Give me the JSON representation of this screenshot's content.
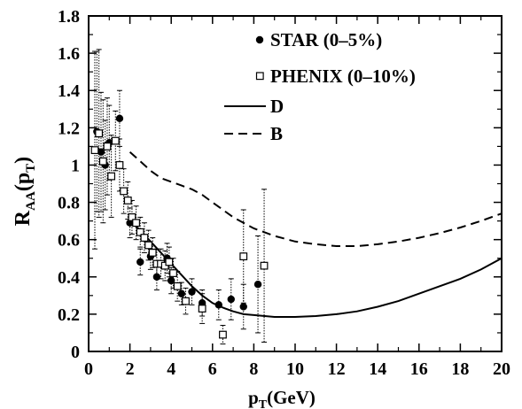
{
  "chart_data": {
    "type": "scatter",
    "title": "",
    "xlabel": "p_T(GeV)",
    "ylabel": "R_AA(p_T)",
    "xlabel_main": "p",
    "xlabel_sub": "T",
    "xlabel_rest": "(GeV)",
    "ylabel_main": "R",
    "ylabel_sub": "AA",
    "ylabel_paren_open": "(p",
    "ylabel_sub2": "T",
    "ylabel_paren_close": ")",
    "xlim": [
      0,
      20
    ],
    "ylim": [
      0,
      1.8
    ],
    "xticks": [
      "0",
      "2",
      "4",
      "6",
      "8",
      "10",
      "12",
      "14",
      "16",
      "18",
      "20"
    ],
    "yticks": [
      "0",
      "0.2",
      "0.4",
      "0.6",
      "0.8",
      "1",
      "1.2",
      "1.4",
      "1.6",
      "1.8"
    ],
    "grid": false,
    "legend_position": "top-right",
    "series": [
      {
        "name": "STAR (0–5%)",
        "kind": "points",
        "marker": "filled-circle",
        "points": [
          {
            "x": 0.4,
            "y": 1.18,
            "err": 0.43
          },
          {
            "x": 0.6,
            "y": 1.07,
            "err": 0.32
          },
          {
            "x": 0.8,
            "y": 1.0,
            "err": 0.24
          },
          {
            "x": 1.0,
            "y": 1.12,
            "err": 0.2
          },
          {
            "x": 1.5,
            "y": 1.25,
            "err": 0.15
          },
          {
            "x": 2.0,
            "y": 0.69,
            "err": 0.08
          },
          {
            "x": 2.5,
            "y": 0.48,
            "err": 0.07
          },
          {
            "x": 3.0,
            "y": 0.51,
            "err": 0.07
          },
          {
            "x": 3.3,
            "y": 0.4,
            "err": 0.07
          },
          {
            "x": 3.8,
            "y": 0.5,
            "err": 0.08
          },
          {
            "x": 4.0,
            "y": 0.38,
            "err": 0.07
          },
          {
            "x": 4.5,
            "y": 0.31,
            "err": 0.06
          },
          {
            "x": 5.0,
            "y": 0.32,
            "err": 0.07
          },
          {
            "x": 5.5,
            "y": 0.26,
            "err": 0.07
          },
          {
            "x": 6.3,
            "y": 0.25,
            "err": 0.08
          },
          {
            "x": 6.9,
            "y": 0.28,
            "err": 0.11
          },
          {
            "x": 7.5,
            "y": 0.24,
            "err": 0.12
          },
          {
            "x": 8.2,
            "y": 0.36,
            "err": 0.26
          }
        ]
      },
      {
        "name": "PHENIX (0–10%)",
        "kind": "points",
        "marker": "open-square",
        "points": [
          {
            "x": 0.3,
            "y": 1.08,
            "err": 0.53
          },
          {
            "x": 0.5,
            "y": 1.17,
            "err": 0.45
          },
          {
            "x": 0.7,
            "y": 1.02,
            "err": 0.33
          },
          {
            "x": 0.9,
            "y": 1.1,
            "err": 0.26
          },
          {
            "x": 1.1,
            "y": 0.94,
            "err": 0.22
          },
          {
            "x": 1.3,
            "y": 1.13,
            "err": 0.16
          },
          {
            "x": 1.5,
            "y": 1.0,
            "err": 0.14
          },
          {
            "x": 1.7,
            "y": 0.86,
            "err": 0.12
          },
          {
            "x": 1.9,
            "y": 0.81,
            "err": 0.1
          },
          {
            "x": 2.1,
            "y": 0.72,
            "err": 0.09
          },
          {
            "x": 2.3,
            "y": 0.69,
            "err": 0.09
          },
          {
            "x": 2.5,
            "y": 0.64,
            "err": 0.08
          },
          {
            "x": 2.7,
            "y": 0.61,
            "err": 0.08
          },
          {
            "x": 2.9,
            "y": 0.57,
            "err": 0.08
          },
          {
            "x": 3.1,
            "y": 0.53,
            "err": 0.08
          },
          {
            "x": 3.3,
            "y": 0.47,
            "err": 0.08
          },
          {
            "x": 3.5,
            "y": 0.47,
            "err": 0.08
          },
          {
            "x": 3.7,
            "y": 0.46,
            "err": 0.08
          },
          {
            "x": 3.9,
            "y": 0.48,
            "err": 0.08
          },
          {
            "x": 4.1,
            "y": 0.42,
            "err": 0.08
          },
          {
            "x": 4.3,
            "y": 0.35,
            "err": 0.08
          },
          {
            "x": 4.7,
            "y": 0.27,
            "err": 0.07
          },
          {
            "x": 5.5,
            "y": 0.23,
            "err": 0.08
          },
          {
            "x": 6.5,
            "y": 0.09,
            "err": 0.05
          },
          {
            "x": 7.5,
            "y": 0.51,
            "err": 0.25
          },
          {
            "x": 8.5,
            "y": 0.46,
            "err": 0.41
          }
        ]
      },
      {
        "name": "D",
        "kind": "line",
        "dash": "solid",
        "points": [
          {
            "x": 2.0,
            "y": 0.7
          },
          {
            "x": 2.5,
            "y": 0.65
          },
          {
            "x": 3.0,
            "y": 0.59
          },
          {
            "x": 3.5,
            "y": 0.53
          },
          {
            "x": 4.0,
            "y": 0.47
          },
          {
            "x": 4.5,
            "y": 0.41
          },
          {
            "x": 5.0,
            "y": 0.35
          },
          {
            "x": 5.5,
            "y": 0.3
          },
          {
            "x": 6.0,
            "y": 0.26
          },
          {
            "x": 6.5,
            "y": 0.235
          },
          {
            "x": 7.0,
            "y": 0.215
          },
          {
            "x": 7.5,
            "y": 0.2
          },
          {
            "x": 8.0,
            "y": 0.195
          },
          {
            "x": 9.0,
            "y": 0.185
          },
          {
            "x": 10.0,
            "y": 0.185
          },
          {
            "x": 11.0,
            "y": 0.19
          },
          {
            "x": 12.0,
            "y": 0.2
          },
          {
            "x": 13.0,
            "y": 0.215
          },
          {
            "x": 14.0,
            "y": 0.24
          },
          {
            "x": 15.0,
            "y": 0.27
          },
          {
            "x": 16.0,
            "y": 0.31
          },
          {
            "x": 17.0,
            "y": 0.35
          },
          {
            "x": 18.0,
            "y": 0.39
          },
          {
            "x": 19.0,
            "y": 0.44
          },
          {
            "x": 20.0,
            "y": 0.5
          }
        ]
      },
      {
        "name": "B",
        "kind": "line",
        "dash": "dashed",
        "points": [
          {
            "x": 2.0,
            "y": 1.07
          },
          {
            "x": 2.5,
            "y": 1.02
          },
          {
            "x": 3.0,
            "y": 0.97
          },
          {
            "x": 3.5,
            "y": 0.93
          },
          {
            "x": 4.0,
            "y": 0.91
          },
          {
            "x": 4.5,
            "y": 0.89
          },
          {
            "x": 5.0,
            "y": 0.87
          },
          {
            "x": 5.5,
            "y": 0.84
          },
          {
            "x": 6.0,
            "y": 0.8
          },
          {
            "x": 6.5,
            "y": 0.76
          },
          {
            "x": 7.0,
            "y": 0.72
          },
          {
            "x": 7.5,
            "y": 0.69
          },
          {
            "x": 8.0,
            "y": 0.66
          },
          {
            "x": 9.0,
            "y": 0.62
          },
          {
            "x": 10.0,
            "y": 0.59
          },
          {
            "x": 11.0,
            "y": 0.575
          },
          {
            "x": 12.0,
            "y": 0.565
          },
          {
            "x": 13.0,
            "y": 0.565
          },
          {
            "x": 14.0,
            "y": 0.575
          },
          {
            "x": 15.0,
            "y": 0.59
          },
          {
            "x": 16.0,
            "y": 0.61
          },
          {
            "x": 17.0,
            "y": 0.635
          },
          {
            "x": 18.0,
            "y": 0.665
          },
          {
            "x": 19.0,
            "y": 0.7
          },
          {
            "x": 20.0,
            "y": 0.74
          }
        ]
      }
    ]
  }
}
